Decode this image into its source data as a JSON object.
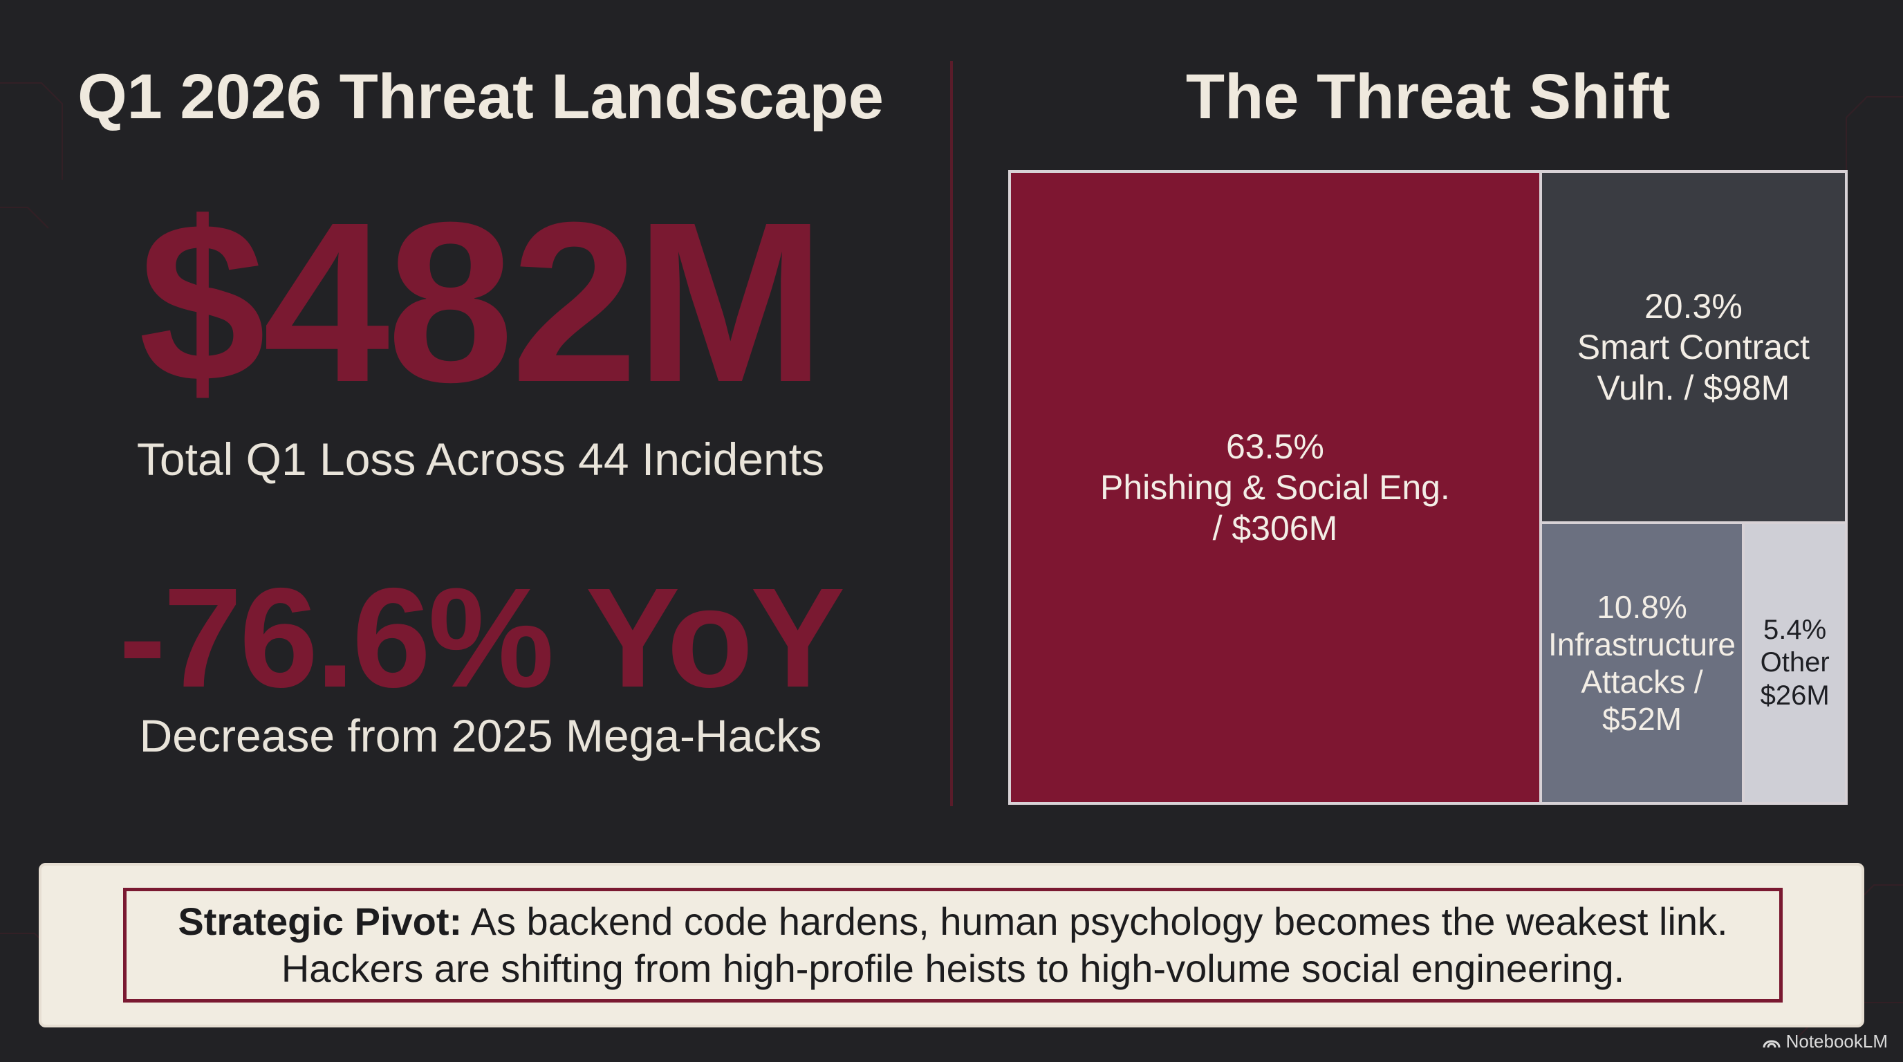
{
  "left": {
    "title": "Q1 2026 Threat Landscape",
    "total_loss": "$482M",
    "total_loss_caption": "Total Q1 Loss Across 44 Incidents",
    "yoy_change": "-76.6% YoY",
    "yoy_caption": "Decrease from 2025 Mega-Hacks"
  },
  "right": {
    "title": "The Threat Shift"
  },
  "chart_data": {
    "type": "treemap",
    "title": "The Threat Shift",
    "items": [
      {
        "lines": [
          "63.5%",
          "Phishing & Social Eng.",
          "/ $306M"
        ],
        "percent": 63.5,
        "value_musd": 306,
        "color": "#7e1631",
        "text_color": "#f3eee6"
      },
      {
        "lines": [
          "20.3%",
          "Smart Contract",
          "Vuln. / $98M"
        ],
        "percent": 20.3,
        "value_musd": 98,
        "color": "#3a3c42",
        "text_color": "#f3eee6"
      },
      {
        "lines": [
          "10.8%",
          "Infrastructure",
          "Attacks /",
          "$52M"
        ],
        "percent": 10.8,
        "value_musd": 52,
        "color": "#6b7080",
        "text_color": "#f3eee6"
      },
      {
        "lines": [
          "5.4%",
          "Other",
          "$26M"
        ],
        "percent": 5.4,
        "value_musd": 26,
        "color": "#cfcfd6",
        "text_color": "#1e1f24"
      }
    ]
  },
  "pivot": {
    "label": "Strategic Pivot:",
    "line1": "As backend code hardens, human psychology becomes the weakest link.",
    "line2": "Hackers are shifting from high-profile heists to high-volume social engineering."
  },
  "brand": {
    "name": "NotebookLM",
    "icon": "notebooklm-logo-icon"
  },
  "colors": {
    "background": "#222225",
    "accent": "#7a1931",
    "panel": "#f1ece1"
  }
}
